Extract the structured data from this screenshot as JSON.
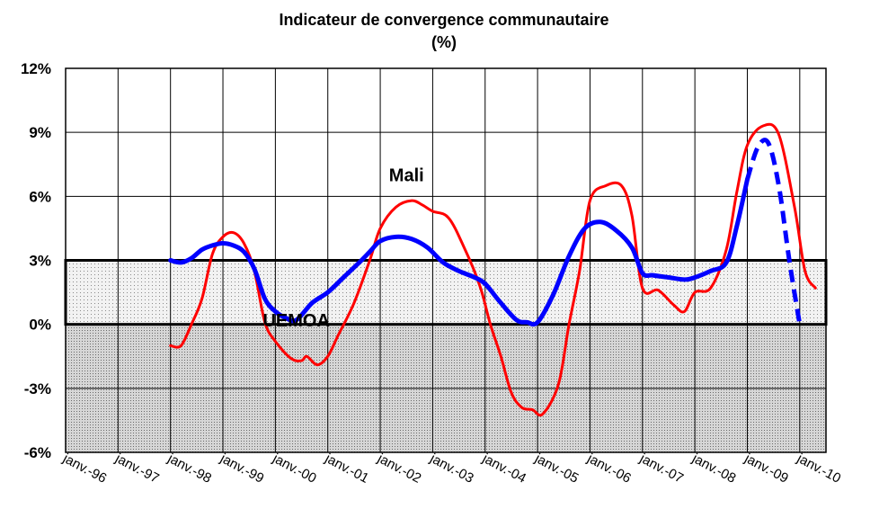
{
  "chart_data": {
    "type": "line",
    "title": "Indicateur de convergence communautaire",
    "subtitle": "(%)",
    "xlabel": "",
    "ylabel": "",
    "ylim": [
      -6,
      12
    ],
    "y_ticks": [
      "12%",
      "9%",
      "6%",
      "3%",
      "0%",
      "-3%",
      "-6%"
    ],
    "y_tick_values": [
      12,
      9,
      6,
      3,
      0,
      -3,
      -6
    ],
    "x_ticks": [
      "janv.-96",
      "janv.-97",
      "janv.-98",
      "janv.-99",
      "janv.-00",
      "janv.-01",
      "janv.-02",
      "janv.-03",
      "janv.-04",
      "janv.-05",
      "janv.-06",
      "janv.-07",
      "janv.-08",
      "janv.-09",
      "janv.-10"
    ],
    "x_range": [
      1996,
      2010.5
    ],
    "grid": true,
    "band": {
      "from": 0,
      "to": 3
    },
    "below_band": {
      "from": -6,
      "to": 0
    },
    "colors": {
      "mali": "#ff0000",
      "uemoa": "#0000ff",
      "band": "#e6e6e6",
      "below": "#c8c8c8"
    },
    "annotations": [
      {
        "text": "Mali",
        "x": 2002.5,
        "y": 6.7
      },
      {
        "text": "UEMOA",
        "x": 2000.4,
        "y": -0.1
      }
    ],
    "series": [
      {
        "name": "Mali",
        "x": [
          1998.0,
          1998.2,
          1998.4,
          1998.6,
          1998.8,
          1999.0,
          1999.2,
          1999.4,
          1999.6,
          1999.8,
          2000.0,
          2000.3,
          2000.5,
          2000.6,
          2000.8,
          2001.0,
          2001.2,
          2001.5,
          2001.8,
          2002.0,
          2002.3,
          2002.6,
          2002.8,
          2003.0,
          2003.3,
          2003.6,
          2003.9,
          2004.1,
          2004.3,
          2004.5,
          2004.7,
          2004.9,
          2005.1,
          2005.4,
          2005.6,
          2005.8,
          2006.0,
          2006.3,
          2006.6,
          2006.8,
          2007.0,
          2007.3,
          2007.6,
          2007.8,
          2008.0,
          2008.3,
          2008.6,
          2008.8,
          2009.0,
          2009.3,
          2009.6,
          2009.9,
          2010.1,
          2010.3
        ],
        "values": [
          -1.0,
          -1.0,
          0.0,
          1.2,
          3.3,
          4.1,
          4.3,
          3.8,
          2.5,
          0.1,
          -0.8,
          -1.6,
          -1.7,
          -1.5,
          -1.9,
          -1.5,
          -0.5,
          1.0,
          3.0,
          4.5,
          5.5,
          5.8,
          5.6,
          5.3,
          5.0,
          3.6,
          1.8,
          0.0,
          -1.5,
          -3.2,
          -3.9,
          -4.0,
          -4.2,
          -2.8,
          0.0,
          2.5,
          5.8,
          6.5,
          6.5,
          5.1,
          1.7,
          1.6,
          0.9,
          0.6,
          1.5,
          1.7,
          3.5,
          6.2,
          8.4,
          9.3,
          8.9,
          5.5,
          2.5,
          1.7
        ]
      },
      {
        "name": "UEMOA",
        "x": [
          1998.0,
          1998.2,
          1998.4,
          1998.6,
          1998.8,
          1999.0,
          1999.2,
          1999.4,
          1999.6,
          1999.8,
          2000.0,
          2000.2,
          2000.4,
          2000.7,
          2001.0,
          2001.3,
          2001.6,
          2001.8,
          2002.0,
          2002.3,
          2002.6,
          2002.9,
          2003.2,
          2003.5,
          2003.8,
          2004.0,
          2004.3,
          2004.6,
          2004.8,
          2005.0,
          2005.3,
          2005.6,
          2005.9,
          2006.2,
          2006.5,
          2006.8,
          2007.0,
          2007.2,
          2007.5,
          2007.8,
          2008.0,
          2008.3,
          2008.6,
          2008.8,
          2009.0
        ],
        "values": [
          3.0,
          2.9,
          3.1,
          3.5,
          3.7,
          3.8,
          3.7,
          3.4,
          2.6,
          1.2,
          0.6,
          0.3,
          0.2,
          1.0,
          1.5,
          2.2,
          2.9,
          3.4,
          3.9,
          4.1,
          4.0,
          3.6,
          2.9,
          2.5,
          2.2,
          1.9,
          1.0,
          0.2,
          0.1,
          0.1,
          1.4,
          3.2,
          4.5,
          4.8,
          4.4,
          3.6,
          2.4,
          2.3,
          2.2,
          2.1,
          2.2,
          2.5,
          2.9,
          4.6,
          6.8
        ]
      },
      {
        "name": "UEMOA",
        "style": "dashed",
        "x": [
          2009.0,
          2009.2,
          2009.4,
          2009.6,
          2009.8,
          2010.0
        ],
        "values": [
          6.8,
          8.3,
          8.5,
          6.5,
          3.0,
          0.0
        ]
      }
    ]
  }
}
